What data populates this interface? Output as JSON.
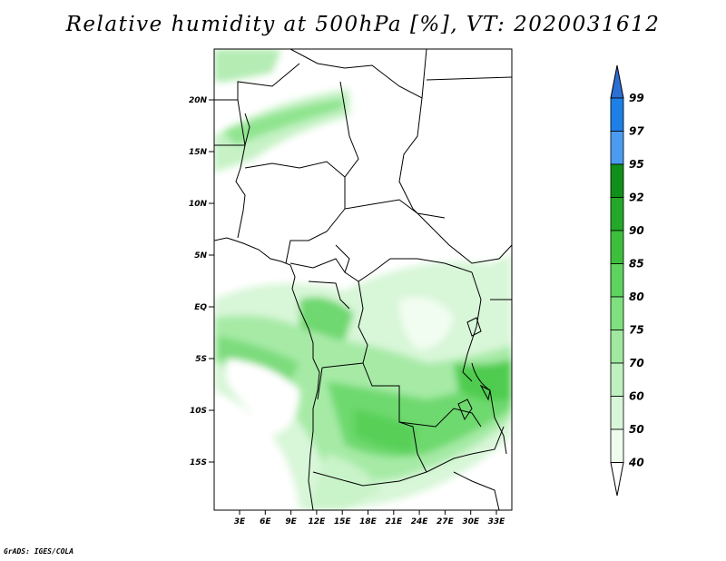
{
  "title": "Relative humidity at 500hPa [%], VT: 2020031612",
  "credit": "GrADS: IGES/COLA",
  "map": {
    "lat_labels": [
      "20N",
      "15N",
      "10N",
      "5N",
      "EQ",
      "5S",
      "10S",
      "15S"
    ],
    "lon_labels": [
      "3E",
      "6E",
      "9E",
      "12E",
      "15E",
      "18E",
      "21E",
      "24E",
      "27E",
      "30E",
      "33E"
    ]
  },
  "colorbar": {
    "labels": [
      "99",
      "97",
      "95",
      "92",
      "90",
      "85",
      "80",
      "75",
      "70",
      "60",
      "50",
      "40"
    ],
    "colors": [
      "#2b6fd6",
      "#1e7fe6",
      "#4b9cf0",
      "#10901a",
      "#23a82a",
      "#3dbf3d",
      "#5fd35f",
      "#7fe07f",
      "#9fe89f",
      "#bff0bf",
      "#d8f6d8",
      "#eefcee"
    ]
  },
  "colors": {
    "border": "#000000",
    "coast": "#000000"
  }
}
